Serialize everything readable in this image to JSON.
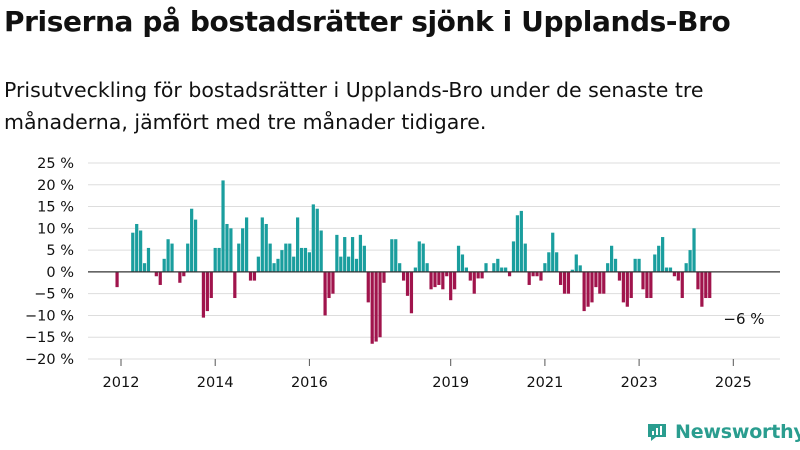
{
  "title": "Priserna på bostadsrätter sjönk i Upplands-Bro",
  "subtitle": "Prisutveckling för bostadsrätter i Upplands-Bro under de senaste tre månaderna, jämfört med tre månader tidigare.",
  "brand": {
    "name": "Newsworthy",
    "icon": "newsworthy-logo-icon"
  },
  "colors": {
    "positive": "#1a9e9e",
    "negative": "#a0144c",
    "grid": "#dddddd",
    "zero_line": "#333333",
    "text": "#111111",
    "brand": "#2a9d8f"
  },
  "chart_data": {
    "type": "bar",
    "title": "Priserna på bostadsrätter sjönk i Upplands-Bro",
    "subtitle": "Prisutveckling för bostadsrätter i Upplands-Bro under de senaste tre månaderna, jämfört med tre månader tidigare.",
    "xlabel": "",
    "ylabel": "",
    "ylim": [
      -20,
      25
    ],
    "y_ticks": [
      25,
      20,
      15,
      10,
      5,
      0,
      -5,
      -10,
      -15,
      -20
    ],
    "y_tick_labels": [
      "25 %",
      "20 %",
      "15 %",
      "10 %",
      "5 %",
      "0 %",
      "−5 %",
      "−10 %",
      "−15 %",
      "−20 %"
    ],
    "x_ticks": [
      "2012",
      "2014",
      "2016",
      "2019",
      "2021",
      "2023",
      "2025"
    ],
    "x_tick_values": [
      2012.0,
      2014.0,
      2016.0,
      2019.0,
      2021.0,
      2023.0,
      2025.0
    ],
    "x_start": 2011.9167,
    "x_step": 0.08333,
    "grid": true,
    "annotation": {
      "text": "−6 %",
      "x": 2025.25,
      "y": -6
    },
    "values": [
      -3.5,
      0,
      0,
      0,
      9,
      11,
      9.5,
      2,
      5.5,
      0,
      -1,
      -3,
      3,
      7.5,
      6.5,
      0,
      -2.5,
      -1,
      6.5,
      14.5,
      12,
      0,
      -10.5,
      -9,
      -6,
      5.5,
      5.5,
      21,
      11,
      10,
      -6,
      6.5,
      10,
      12.5,
      -2,
      -2,
      3.5,
      12.5,
      11,
      6.5,
      2,
      3,
      5,
      6.5,
      6.5,
      3.5,
      12.5,
      5.5,
      5.5,
      4.5,
      15.5,
      14.5,
      9.5,
      -10,
      -6,
      -5,
      8.5,
      3.5,
      8,
      3.5,
      8,
      3,
      8.5,
      6,
      -7,
      -16.5,
      -16,
      -15,
      -2.5,
      0,
      7.5,
      7.5,
      2,
      -2,
      -5.5,
      -9.5,
      1,
      7,
      6.5,
      2,
      -4,
      -3.5,
      -3,
      -4,
      -1,
      -6.5,
      -4,
      6,
      4,
      1,
      -2,
      -5,
      -1.5,
      -1.5,
      2,
      0,
      2,
      3,
      1,
      1,
      -1,
      7,
      13,
      14,
      6.5,
      -3,
      -1,
      -1,
      -2,
      2,
      4.5,
      9,
      4.5,
      -3,
      -5,
      -5,
      0.5,
      4,
      1.5,
      -9,
      -8,
      -7,
      -3.5,
      -5,
      -5,
      2,
      6,
      3,
      -2,
      -7,
      -8,
      -6,
      3,
      3,
      -4,
      -6,
      -6,
      4,
      6,
      8,
      1,
      1,
      -1,
      -2,
      -6,
      2,
      5,
      10,
      -4,
      -8,
      -6,
      -6
    ]
  }
}
